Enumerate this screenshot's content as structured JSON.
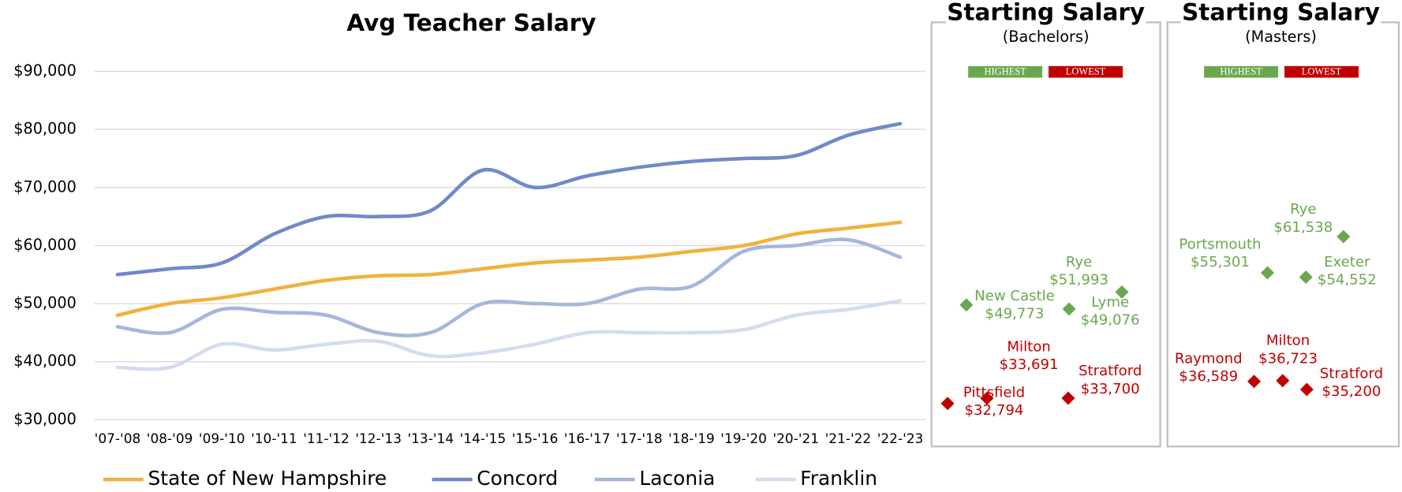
{
  "chart_data": [
    {
      "type": "line",
      "title": "Avg Teacher Salary",
      "categories": [
        "'07-'08",
        "'08-'09",
        "'09-'10",
        "'10-'11",
        "'11-'12",
        "'12-'13",
        "'13-'14",
        "'14-'15",
        "'15-'16",
        "'16-'17",
        "'17-'18",
        "'18-'19",
        "'19-'20",
        "'20-'21",
        "'21-'22",
        "'22-'23"
      ],
      "series": [
        {
          "name": "State of New Hampshire",
          "color": "#f0b23e",
          "values": [
            48000,
            50000,
            51000,
            52500,
            54000,
            54800,
            55000,
            56000,
            57000,
            57500,
            58000,
            59000,
            60000,
            62000,
            63000,
            64000
          ]
        },
        {
          "name": "Concord",
          "color": "#7189c9",
          "values": [
            55000,
            56000,
            57000,
            62000,
            65000,
            65000,
            66000,
            73000,
            70000,
            72000,
            73500,
            74500,
            75000,
            75500,
            79000,
            81000
          ]
        },
        {
          "name": "Laconia",
          "color": "#a6b6de",
          "values": [
            46000,
            45000,
            49000,
            48500,
            48000,
            45000,
            45000,
            50000,
            50000,
            50000,
            52500,
            53000,
            59000,
            60000,
            61000,
            58000
          ]
        },
        {
          "name": "Franklin",
          "color": "#d3dcf0",
          "values": [
            39000,
            39000,
            43000,
            42000,
            43000,
            43500,
            41000,
            41500,
            43000,
            45000,
            45000,
            45000,
            45500,
            48000,
            49000,
            50500
          ]
        }
      ],
      "ylim": [
        30000,
        90000
      ],
      "yticks": [
        {
          "value": 30000,
          "label": "$30,000"
        },
        {
          "value": 40000,
          "label": "$40,000"
        },
        {
          "value": 50000,
          "label": "$50,000"
        },
        {
          "value": 60000,
          "label": "$60,000"
        },
        {
          "value": 70000,
          "label": "$70,000"
        },
        {
          "value": 80000,
          "label": "$80,000"
        },
        {
          "value": 90000,
          "label": "$90,000"
        }
      ],
      "grid": true,
      "legend": "bottom"
    },
    {
      "type": "scatter",
      "title": "Starting Salary",
      "subtitle": "(Bachelors)",
      "ylim": [
        30000,
        90000
      ],
      "series": [
        {
          "name": "HIGHEST",
          "color": "#6aa84f",
          "categories": [
            "Rye",
            "New Castle",
            "Lyme"
          ],
          "values": [
            51993,
            49773,
            49076
          ],
          "value_labels": [
            "$51,993",
            "$49,773",
            "$49,076"
          ]
        },
        {
          "name": "LOWEST",
          "color": "#c00000",
          "categories": [
            "Milton",
            "Stratford",
            "Pittsfield"
          ],
          "values": [
            33691,
            33700,
            32794
          ],
          "value_labels": [
            "$33,691",
            "$33,700",
            "$32,794"
          ]
        }
      ]
    },
    {
      "type": "scatter",
      "title": "Starting Salary",
      "subtitle": "(Masters)",
      "ylim": [
        30000,
        90000
      ],
      "series": [
        {
          "name": "HIGHEST",
          "color": "#6aa84f",
          "categories": [
            "Rye",
            "Portsmouth",
            "Exeter"
          ],
          "values": [
            61538,
            55301,
            54552
          ],
          "value_labels": [
            "$61,538",
            "$55,301",
            "$54,552"
          ]
        },
        {
          "name": "LOWEST",
          "color": "#c00000",
          "categories": [
            "Raymond",
            "Milton",
            "Stratford"
          ],
          "values": [
            36589,
            36723,
            35200
          ],
          "value_labels": [
            "$36,589",
            "$36,723",
            "$35,200"
          ]
        }
      ]
    }
  ]
}
